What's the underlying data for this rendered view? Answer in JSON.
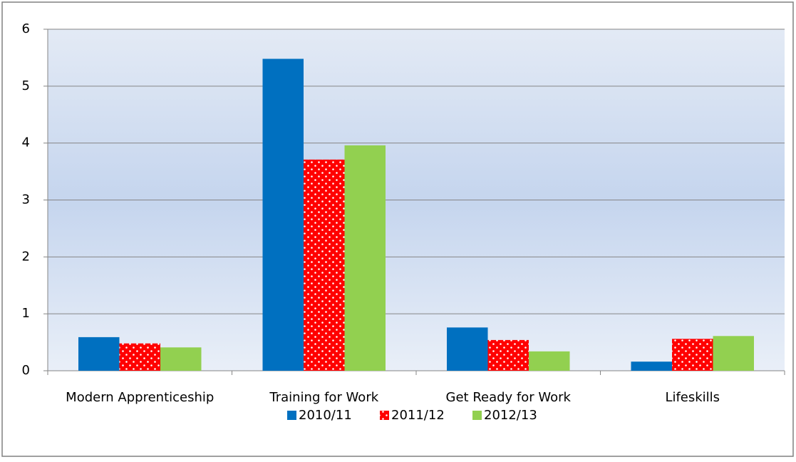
{
  "chart_data": {
    "type": "bar",
    "categories": [
      "Modern Apprenticeship",
      "Training for Work",
      "Get Ready for Work",
      "Lifeskills"
    ],
    "series": [
      {
        "name": "2010/11",
        "color": "#0070c0",
        "values": [
          0.59,
          5.48,
          0.76,
          0.16
        ]
      },
      {
        "name": "2011/12",
        "color": "#ff0000",
        "pattern": "dots",
        "values": [
          0.48,
          3.71,
          0.54,
          0.56
        ]
      },
      {
        "name": "2012/13",
        "color": "#92d050",
        "values": [
          0.41,
          3.96,
          0.34,
          0.61
        ]
      }
    ],
    "ylim": [
      0,
      6
    ],
    "yticks": [
      0,
      1,
      2,
      3,
      4,
      5,
      6
    ],
    "grid": true,
    "legend": "bottom"
  }
}
